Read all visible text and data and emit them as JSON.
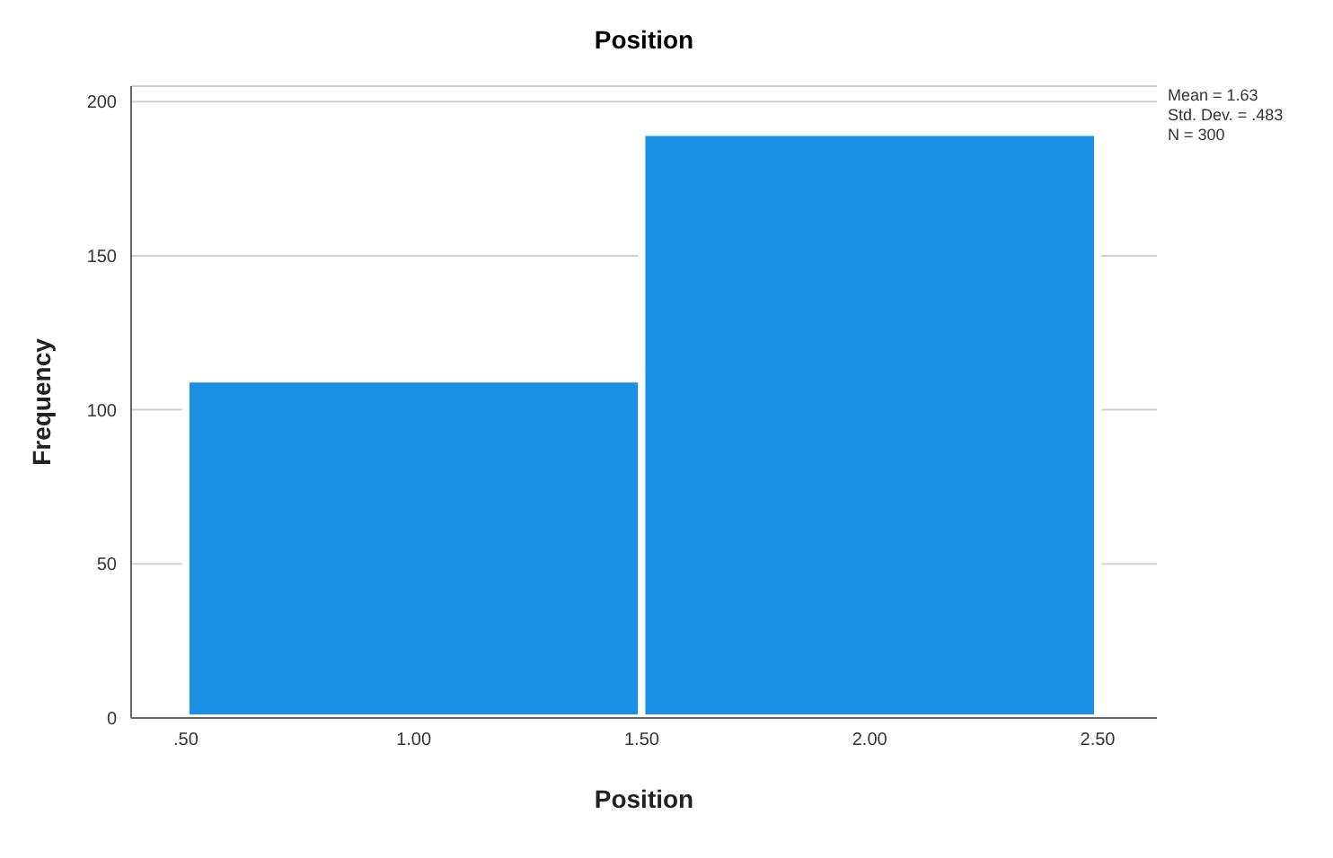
{
  "chart_data": {
    "type": "histogram",
    "title": "Position",
    "xlabel": "Position",
    "ylabel": "Frequency",
    "bins": [
      0.5,
      1.5,
      2.5
    ],
    "values": [
      110,
      190
    ],
    "color": "#1a8fe3",
    "xlim": [
      0.38,
      2.63
    ],
    "xticks": [
      {
        "value": 0.5,
        "label": ".50"
      },
      {
        "value": 1,
        "label": "1.00"
      },
      {
        "value": 1.5,
        "label": "1.50"
      },
      {
        "value": 2,
        "label": "2.00"
      },
      {
        "value": 2.5,
        "label": "2.50"
      }
    ],
    "ylim": [
      0,
      205
    ],
    "yticks": [
      0,
      50,
      100,
      150,
      200
    ],
    "grid": "y",
    "annotations": [
      "Mean = 1.63",
      "Std. Dev. = .483",
      "N = 300"
    ]
  }
}
